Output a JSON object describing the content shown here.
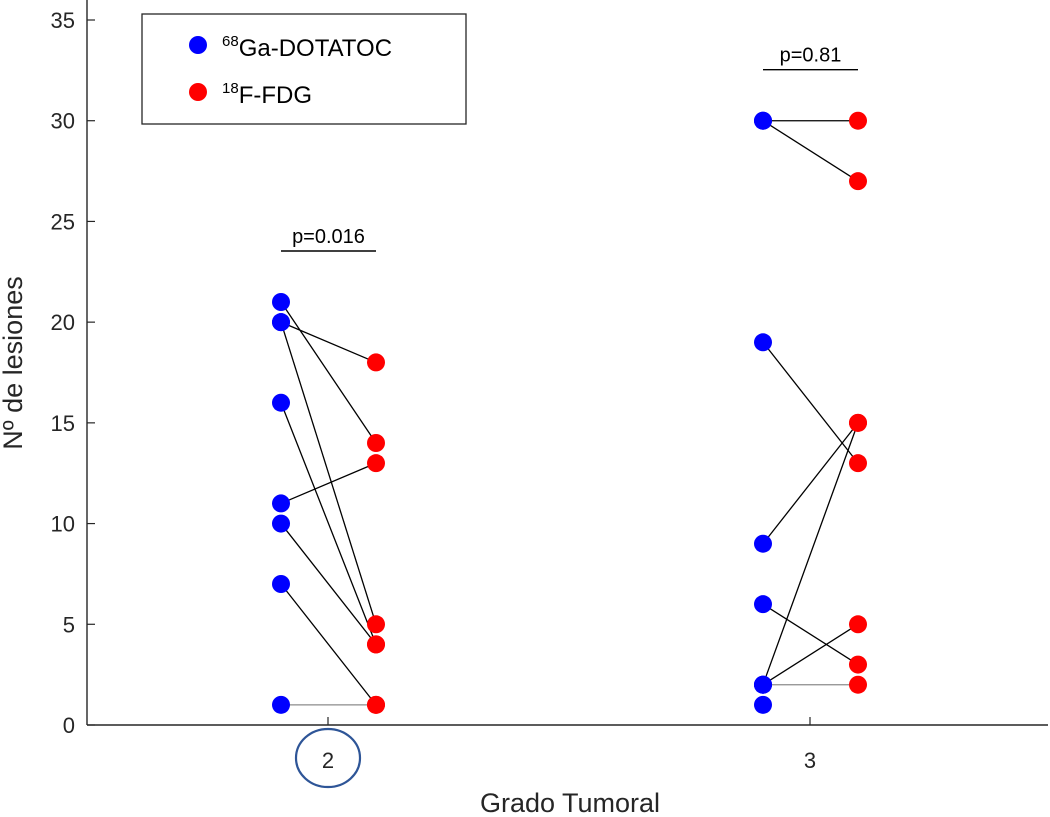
{
  "chart_data": {
    "type": "scatter",
    "title": "",
    "xlabel": "Grado Tumoral",
    "ylabel": "Nº de lesiones",
    "ylim": [
      0,
      35
    ],
    "yticks": [
      0,
      5,
      10,
      15,
      20,
      25,
      30,
      35
    ],
    "grid": false,
    "legend_position": "top-left",
    "highlighted_tick": "2",
    "groups": [
      {
        "label": "2",
        "p_value": "p=0.016",
        "pairs": [
          {
            "dotatoc": 21,
            "fdg": 14
          },
          {
            "dotatoc": 20,
            "fdg": 18
          },
          {
            "dotatoc": 20,
            "fdg": 5
          },
          {
            "dotatoc": 16,
            "fdg": 4
          },
          {
            "dotatoc": 11,
            "fdg": 13
          },
          {
            "dotatoc": 10,
            "fdg": 4
          },
          {
            "dotatoc": 7,
            "fdg": 1
          },
          {
            "dotatoc": 1,
            "fdg": 1
          }
        ]
      },
      {
        "label": "3",
        "p_value": "p=0.81",
        "pairs": [
          {
            "dotatoc": 30,
            "fdg": 30
          },
          {
            "dotatoc": 30,
            "fdg": 27
          },
          {
            "dotatoc": 19,
            "fdg": 13
          },
          {
            "dotatoc": 9,
            "fdg": 15
          },
          {
            "dotatoc": 6,
            "fdg": 3
          },
          {
            "dotatoc": 2,
            "fdg": 15
          },
          {
            "dotatoc": 2,
            "fdg": 5
          },
          {
            "dotatoc": 2,
            "fdg": 2
          },
          {
            "dotatoc": 1,
            "fdg": null
          }
        ]
      }
    ],
    "series": [
      {
        "name_sup": "68",
        "name_main": "Ga-DOTATOC",
        "color": "#0000ff"
      },
      {
        "name_sup": "18",
        "name_main": "F-FDG",
        "color": "#ff0000"
      }
    ]
  },
  "colors": {
    "axis": "#262626",
    "pair_line": "#000000",
    "highlight_circle": "#2e5597"
  }
}
